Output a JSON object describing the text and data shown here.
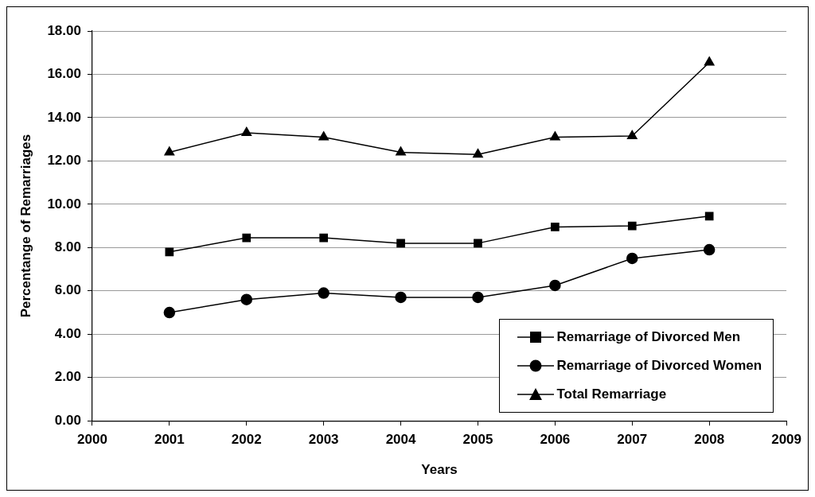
{
  "chart_data": {
    "type": "line",
    "xlabel": "Years",
    "ylabel": "Percentange of Remarriages",
    "x": [
      2001,
      2002,
      2003,
      2004,
      2005,
      2006,
      2007,
      2008
    ],
    "series": [
      {
        "name": "Remarriage of Divorced Men",
        "color": "#000000",
        "marker": "square",
        "values": [
          7.8,
          8.45,
          8.45,
          8.2,
          8.2,
          8.95,
          9.0,
          9.45
        ]
      },
      {
        "name": "Remarriage of Divorced Women",
        "color": "#000000",
        "marker": "circle",
        "values": [
          5.0,
          5.6,
          5.9,
          5.7,
          5.7,
          6.25,
          7.5,
          7.9
        ]
      },
      {
        "name": "Total Remarriage",
        "color": "#000000",
        "marker": "triangle",
        "values": [
          12.4,
          13.3,
          13.1,
          12.4,
          12.3,
          13.1,
          13.15,
          16.55
        ]
      }
    ],
    "xlim": [
      2000,
      2009
    ],
    "xticks": [
      2000,
      2001,
      2002,
      2003,
      2004,
      2005,
      2006,
      2007,
      2008,
      2009
    ],
    "ylim": [
      0,
      18
    ],
    "yticks": [
      {
        "value": 0,
        "label": "0.00"
      },
      {
        "value": 2,
        "label": "2.00"
      },
      {
        "value": 4,
        "label": "4.00"
      },
      {
        "value": 6,
        "label": "6.00"
      },
      {
        "value": 8,
        "label": "8.00"
      },
      {
        "value": 10,
        "label": "10.00"
      },
      {
        "value": 12,
        "label": "12.00"
      },
      {
        "value": 14,
        "label": "14.00"
      },
      {
        "value": 16,
        "label": "16.00"
      },
      {
        "value": 18,
        "label": "18.00"
      }
    ],
    "grid": "y",
    "legend": "bottom right"
  }
}
